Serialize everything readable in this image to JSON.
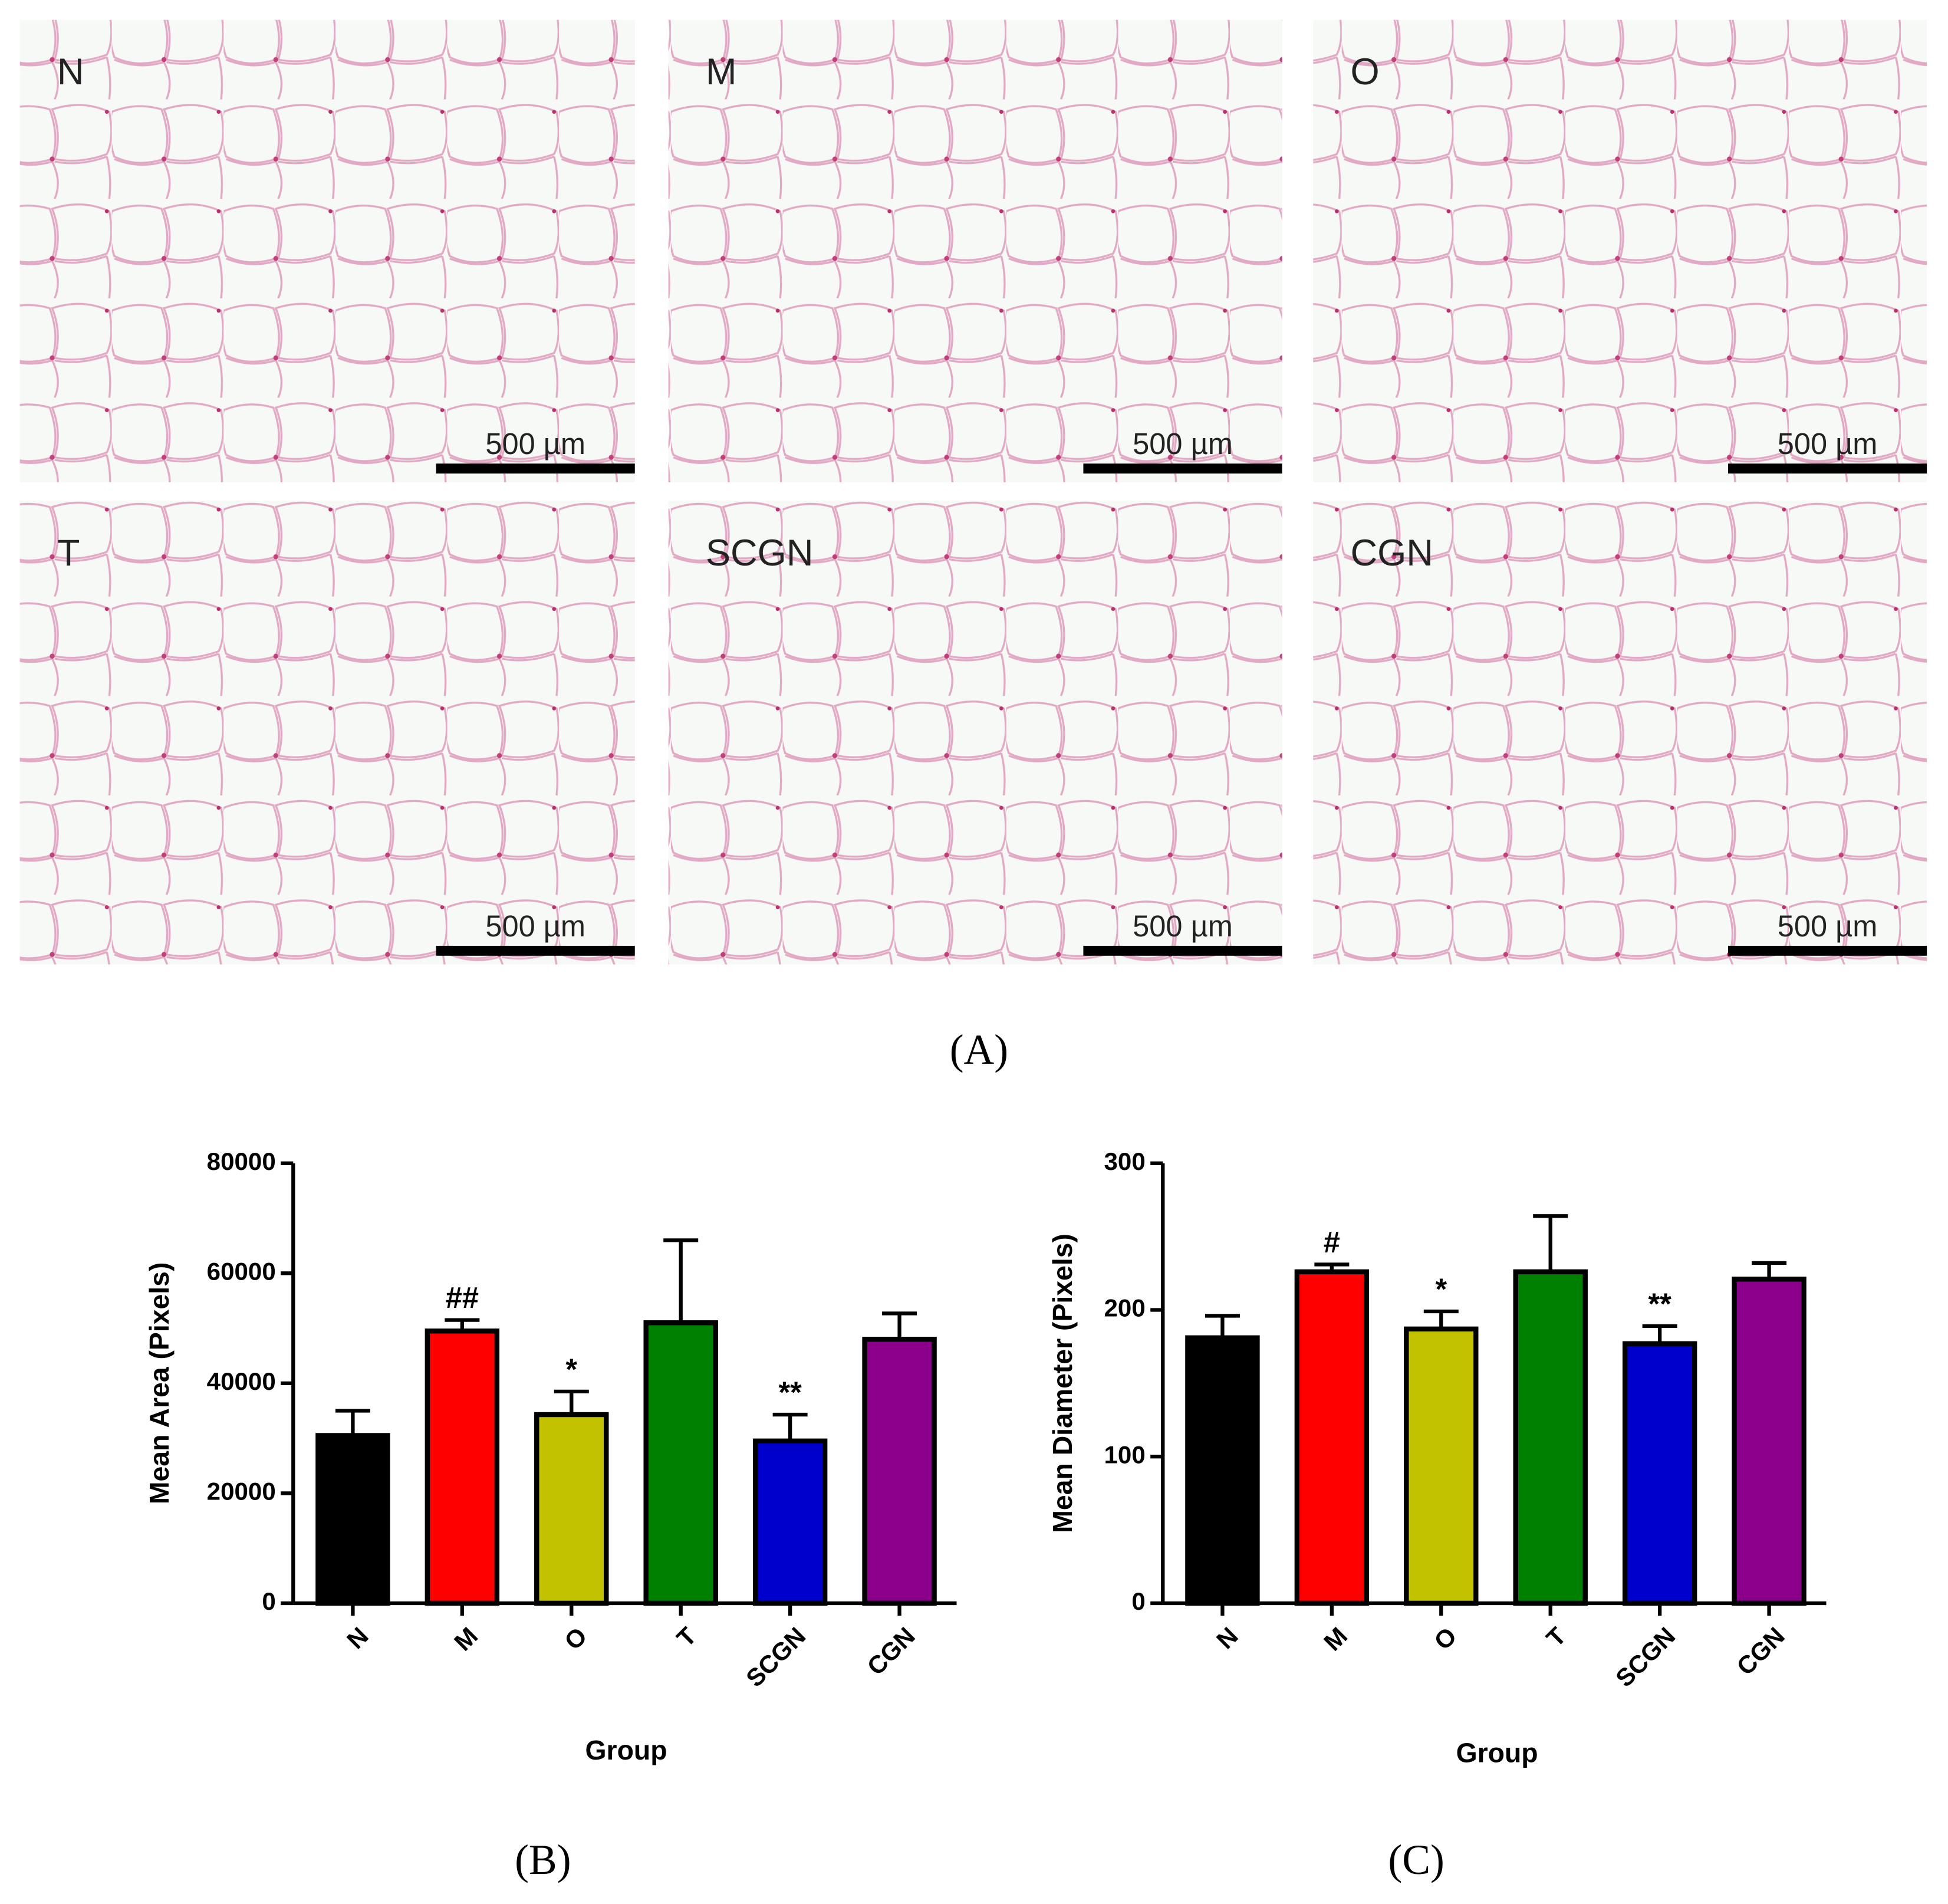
{
  "figure": {
    "micrographs": [
      {
        "label": "N",
        "scale_bar": "500 µm"
      },
      {
        "label": "M",
        "scale_bar": "500 µm"
      },
      {
        "label": "O",
        "scale_bar": "500 µm"
      },
      {
        "label": "T",
        "scale_bar": "500 µm"
      },
      {
        "label": "SCGN",
        "scale_bar": "500 µm"
      },
      {
        "label": "CGN",
        "scale_bar": "500 µm"
      }
    ],
    "panel_labels": [
      "(A)",
      "(B)",
      "(C)"
    ]
  },
  "chart_data": [
    {
      "type": "bar",
      "y_label": "Mean Area (Pixels)",
      "x_label": "Group",
      "categories": [
        "N",
        "M",
        "O",
        "T",
        "SCGN",
        "CGN"
      ],
      "values": [
        30500,
        49500,
        34300,
        51000,
        29500,
        48000
      ],
      "errors": [
        4500,
        2000,
        4200,
        15000,
        4800,
        4700
      ],
      "significance": [
        null,
        "##",
        "*",
        null,
        "**",
        null
      ],
      "colors": [
        "#000000",
        "#ff0000",
        "#c2c200",
        "#008000",
        "#0000cc",
        "#8b008b"
      ],
      "ylim": [
        0,
        80000
      ],
      "yticks": [
        0,
        20000,
        40000,
        60000,
        80000
      ]
    },
    {
      "type": "bar",
      "y_label": "Mean Diameter (Pixels)",
      "x_label": "Group",
      "categories": [
        "N",
        "M",
        "O",
        "T",
        "SCGN",
        "CGN"
      ],
      "values": [
        181,
        226,
        187,
        226,
        177,
        221
      ],
      "errors": [
        15,
        5,
        12,
        38,
        12,
        11
      ],
      "significance": [
        null,
        "#",
        "*",
        null,
        "**",
        null
      ],
      "colors": [
        "#000000",
        "#ff0000",
        "#c2c200",
        "#008000",
        "#0000cc",
        "#8b008b"
      ],
      "ylim": [
        0,
        300
      ],
      "yticks": [
        0,
        100,
        200,
        300
      ]
    }
  ]
}
